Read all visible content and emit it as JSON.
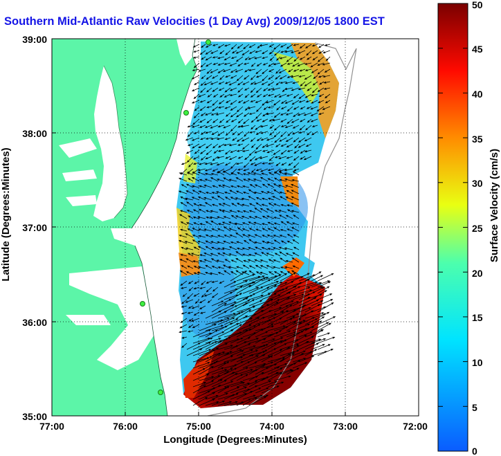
{
  "title": "Southern Mid-Atlantic Raw Velocities (1 Day Avg) 2009/12/05 1800 EST",
  "map": {
    "xlabel": "Longitude (Degrees:Minutes)",
    "ylabel": "Latitude (Degrees:Minutes)",
    "x_ticks": [
      "77:00",
      "76:00",
      "75:00",
      "74:00",
      "73:00",
      "72:00"
    ],
    "y_ticks": [
      "39:00",
      "38:00",
      "37:00",
      "36:00",
      "35:00"
    ],
    "lon_range": [
      -77,
      -72
    ],
    "lat_range": [
      35,
      39
    ],
    "grid": true,
    "land_color": "#5cf5a8",
    "water_color": "#ffffff"
  },
  "colorbar": {
    "label": "Surface Velocity (cm/s)",
    "range": [
      0,
      50
    ],
    "ticks": [
      "50",
      "45",
      "40",
      "35",
      "30",
      "25",
      "20",
      "15",
      "10",
      "5",
      "0"
    ]
  }
}
